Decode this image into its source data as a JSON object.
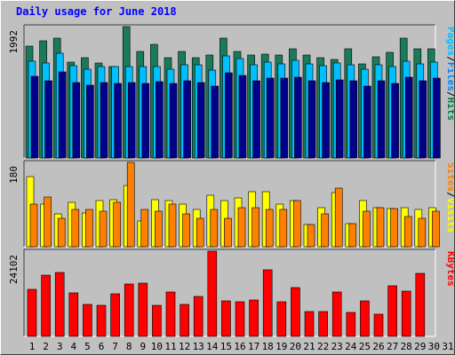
{
  "chart_data": {
    "title": "Daily usage for June 2018",
    "type": "bar",
    "days": [
      {
        "label": "1",
        "weekend": false
      },
      {
        "label": "2",
        "weekend": true
      },
      {
        "label": "3",
        "weekend": true
      },
      {
        "label": "4",
        "weekend": false
      },
      {
        "label": "5",
        "weekend": false
      },
      {
        "label": "6",
        "weekend": false
      },
      {
        "label": "7",
        "weekend": false
      },
      {
        "label": "8",
        "weekend": false
      },
      {
        "label": "9",
        "weekend": true
      },
      {
        "label": "10",
        "weekend": true
      },
      {
        "label": "11",
        "weekend": false
      },
      {
        "label": "12",
        "weekend": false
      },
      {
        "label": "13",
        "weekend": false
      },
      {
        "label": "14",
        "weekend": false
      },
      {
        "label": "15",
        "weekend": false
      },
      {
        "label": "16",
        "weekend": true
      },
      {
        "label": "17",
        "weekend": true
      },
      {
        "label": "18",
        "weekend": false
      },
      {
        "label": "19",
        "weekend": false
      },
      {
        "label": "20",
        "weekend": false
      },
      {
        "label": "21",
        "weekend": false
      },
      {
        "label": "22",
        "weekend": false
      },
      {
        "label": "23",
        "weekend": true
      },
      {
        "label": "24",
        "weekend": true
      },
      {
        "label": "25",
        "weekend": false
      },
      {
        "label": "26",
        "weekend": false
      },
      {
        "label": "27",
        "weekend": false
      },
      {
        "label": "28",
        "weekend": false
      },
      {
        "label": "29",
        "weekend": false
      },
      {
        "label": "30",
        "weekend": true
      },
      {
        "label": "31",
        "weekend": true
      }
    ],
    "panels": [
      {
        "key": "hits",
        "ymax_label": "1992",
        "ymax": 1992,
        "series": [
          {
            "name": "Hits",
            "color": "#1a7a5a",
            "values": [
              1700,
              1780,
              1820,
              1460,
              1520,
              1440,
              1380,
              1992,
              1620,
              1720,
              1520,
              1620,
              1520,
              1560,
              1820,
              1620,
              1560,
              1580,
              1560,
              1660,
              1560,
              1520,
              1500,
              1660,
              1420,
              1540,
              1600,
              1820,
              1660,
              1660,
              null
            ]
          },
          {
            "name": "Files",
            "color": "#00bfff",
            "values": [
              1470,
              1440,
              1590,
              1400,
              1350,
              1390,
              1380,
              1390,
              1390,
              1390,
              1350,
              1410,
              1410,
              1330,
              1550,
              1510,
              1410,
              1450,
              1430,
              1480,
              1420,
              1400,
              1440,
              1410,
              1340,
              1410,
              1380,
              1470,
              1420,
              1450,
              null
            ]
          },
          {
            "name": "Pages",
            "color": "#00008b",
            "values": [
              1240,
              1170,
              1310,
              1150,
              1110,
              1150,
              1130,
              1150,
              1130,
              1160,
              1130,
              1170,
              1150,
              1090,
              1290,
              1250,
              1170,
              1210,
              1210,
              1230,
              1170,
              1150,
              1180,
              1170,
              1090,
              1170,
              1130,
              1230,
              1170,
              1210,
              null
            ]
          }
        ],
        "labels": [
          {
            "text": "Hits",
            "color": "#008040"
          },
          {
            "text": "Files",
            "color": "#0080ff"
          },
          {
            "text": "Pages",
            "color": "#00bfff"
          }
        ]
      },
      {
        "key": "visits",
        "ymax_label": "180",
        "ymax": 180,
        "series": [
          {
            "name": "Visits",
            "color": "#ffff00",
            "values": [
              150,
              90,
              70,
              95,
              72,
              98,
              100,
              130,
              55,
              100,
              98,
              90,
              80,
              110,
              98,
              105,
              118,
              118,
              90,
              98,
              48,
              84,
              115,
              50,
              98,
              84,
              82,
              84,
              80,
              84,
              null
            ]
          },
          {
            "name": "Sites",
            "color": "#ff8000",
            "values": [
              90,
              106,
              60,
              80,
              80,
              76,
              95,
              180,
              80,
              76,
              90,
              70,
              60,
              80,
              60,
              84,
              84,
              80,
              80,
              98,
              48,
              70,
              125,
              50,
              76,
              84,
              82,
              64,
              60,
              76,
              null
            ]
          }
        ],
        "labels": [
          {
            "text": "Visits",
            "color": "#ffff00"
          },
          {
            "text": "Sites",
            "color": "#ff8000"
          }
        ]
      },
      {
        "key": "kbytes",
        "ymax_label": "24102",
        "ymax": 24102,
        "series": [
          {
            "name": "KBytes",
            "color": "#ff0000",
            "values": [
              13300,
              17200,
              18000,
              12300,
              9000,
              8900,
              12000,
              14700,
              15000,
              8900,
              12600,
              9000,
              11400,
              24102,
              10100,
              9700,
              10300,
              18900,
              9900,
              13700,
              7000,
              7100,
              12600,
              6800,
              10000,
              6300,
              14200,
              12900,
              17800,
              null,
              null
            ]
          }
        ],
        "labels": [
          {
            "text": "KBytes",
            "color": "#ff0000"
          }
        ]
      }
    ]
  }
}
